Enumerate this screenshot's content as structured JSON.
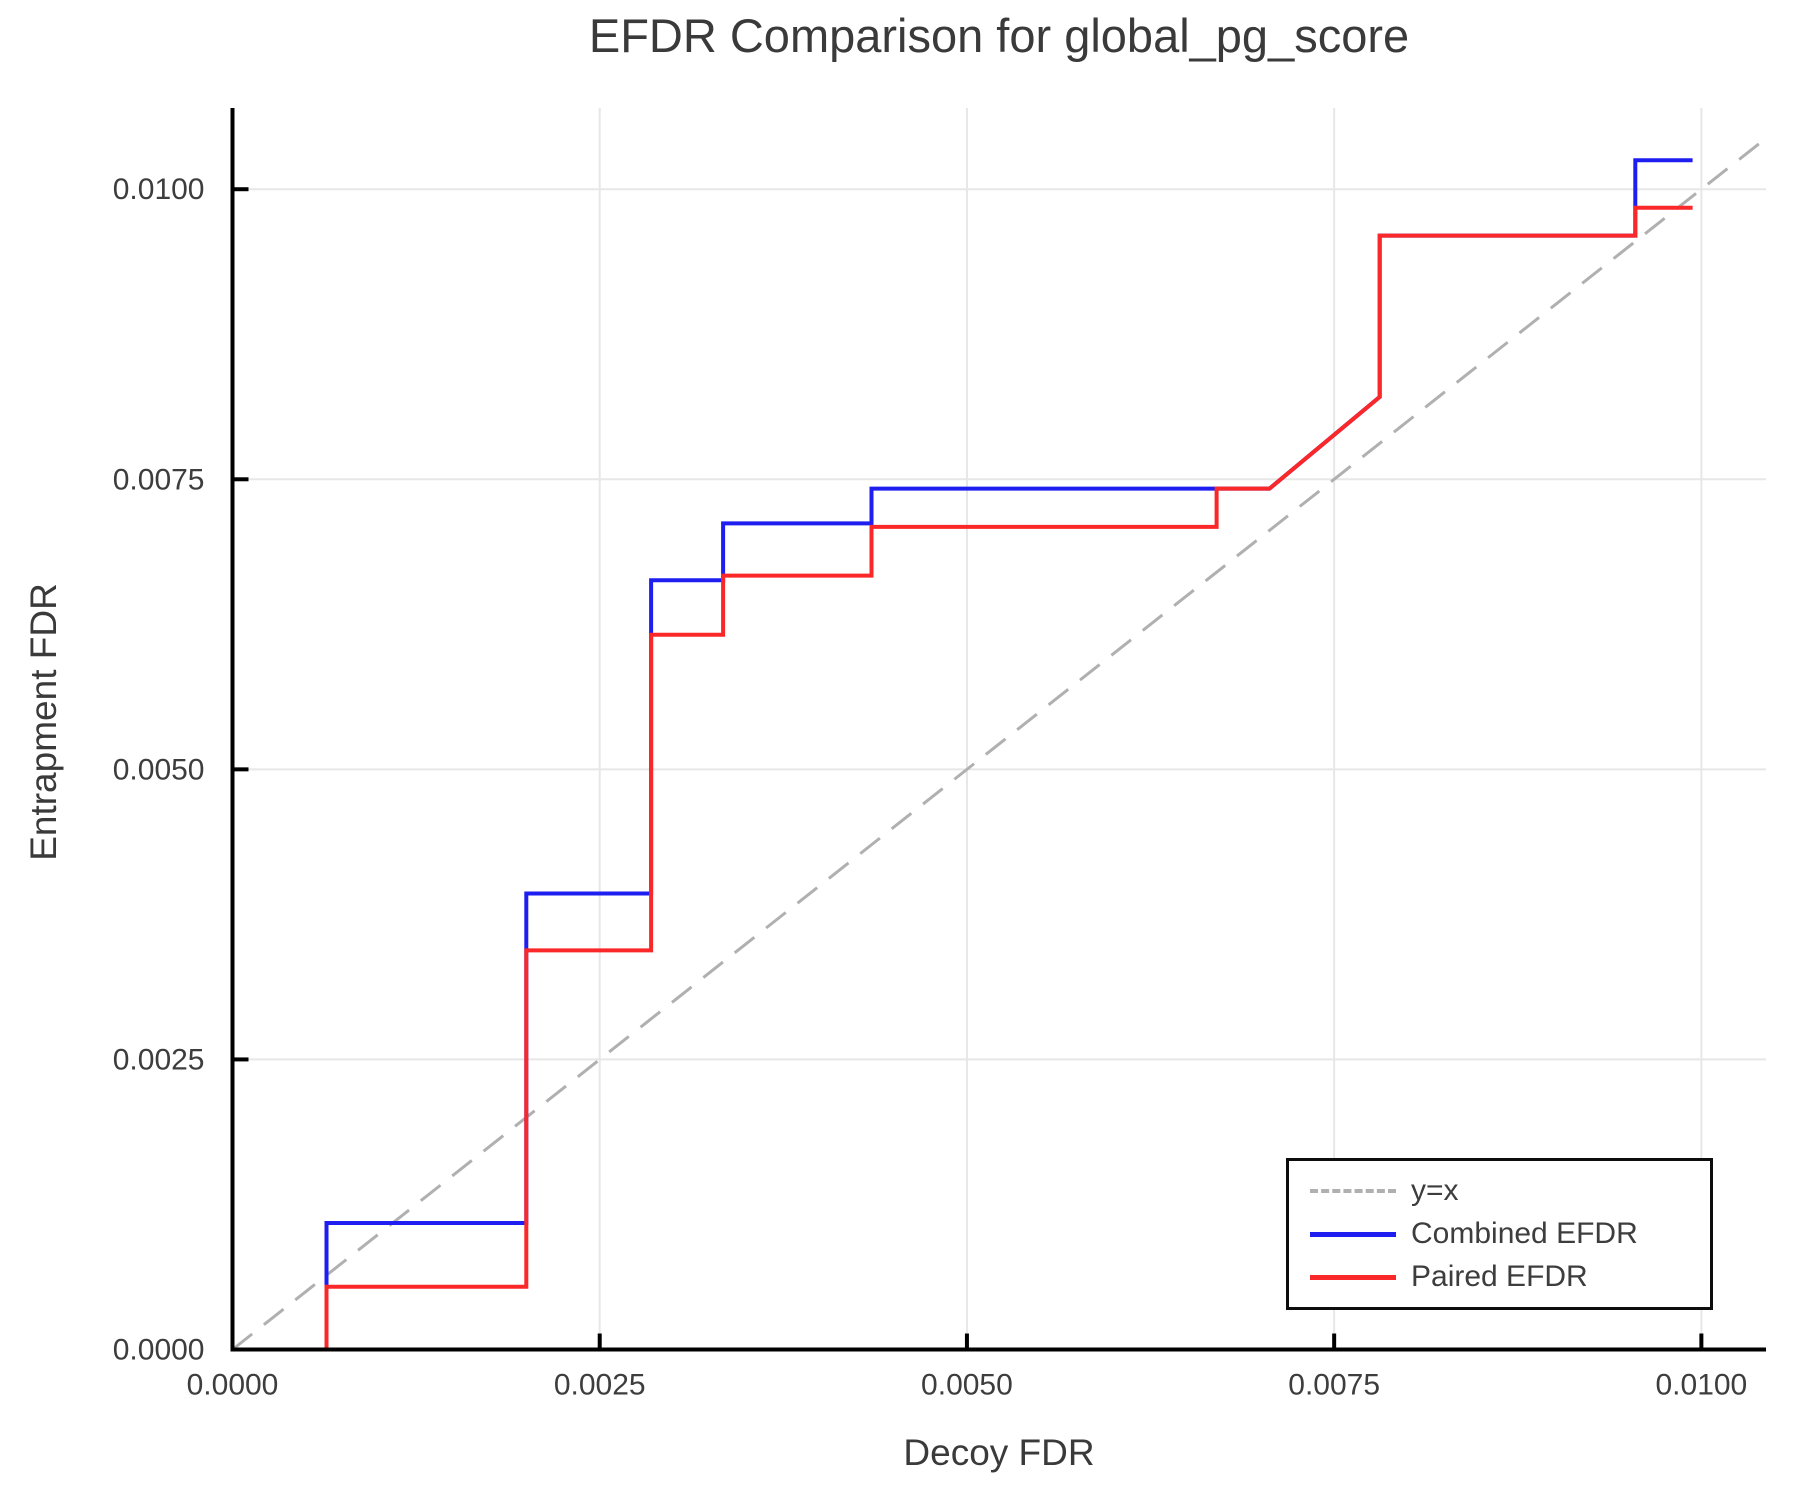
{
  "figure": {
    "title": "EFDR Comparison for global_pg_score"
  },
  "axes": {
    "xlabel": "Decoy FDR",
    "ylabel": "Entrapment FDR"
  },
  "colors": {
    "combined_efdr": "#1e1ef0",
    "paired_efdr": "#fa2828",
    "identity_line": "#b0b0b0",
    "gridline": "#e7e7e7",
    "spine": "#000000",
    "text": "#3d3d3d"
  },
  "legend": {
    "items": [
      {
        "label": "y=x",
        "color": "#b0b0b0",
        "style": "dashed"
      },
      {
        "label": "Combined EFDR",
        "color": "#1e1ef0",
        "style": "solid"
      },
      {
        "label": "Paired EFDR",
        "color": "#fa2828",
        "style": "solid"
      }
    ]
  },
  "chart_data": {
    "type": "line",
    "title": "EFDR Comparison for global_pg_score",
    "xlabel": "Decoy FDR",
    "ylabel": "Entrapment FDR",
    "xlim": [
      0,
      0.01044
    ],
    "ylim": [
      0,
      0.0107
    ],
    "x_tick_labels": [
      "0.0000",
      "0.0025",
      "0.0050",
      "0.0075",
      "0.0100"
    ],
    "y_tick_labels": [
      "0.0000",
      "0.0025",
      "0.0050",
      "0.0075",
      "0.0100"
    ],
    "grid": true,
    "legend_position": "lower right",
    "series": [
      {
        "name": "y=x",
        "color": "#b0b0b0",
        "dash": true,
        "width": 3,
        "points": [
          [
            0,
            0
          ],
          [
            0.01044,
            0.01044
          ]
        ]
      },
      {
        "name": "Combined EFDR",
        "color": "#1e1ef0",
        "dash": false,
        "width": 4,
        "points": [
          [
            0,
            0
          ],
          [
            0.00064,
            0
          ],
          [
            0.00064,
            0.00109
          ],
          [
            0.002,
            0.00109
          ],
          [
            0.002,
            0.00393
          ],
          [
            0.00285,
            0.00393
          ],
          [
            0.00285,
            0.00663
          ],
          [
            0.00334,
            0.00663
          ],
          [
            0.00334,
            0.00712
          ],
          [
            0.00435,
            0.00712
          ],
          [
            0.00435,
            0.00742
          ],
          [
            0.00706,
            0.00742
          ],
          [
            0.00781,
            0.00821
          ],
          [
            0.00781,
            0.0096
          ],
          [
            0.00955,
            0.0096
          ],
          [
            0.00955,
            0.01025
          ],
          [
            0.00994,
            0.01025
          ]
        ]
      },
      {
        "name": "Paired EFDR",
        "color": "#fa2828",
        "dash": false,
        "width": 4,
        "points": [
          [
            0,
            0
          ],
          [
            0.00064,
            0
          ],
          [
            0.00064,
            0.00054
          ],
          [
            0.002,
            0.00054
          ],
          [
            0.002,
            0.00344
          ],
          [
            0.00285,
            0.00344
          ],
          [
            0.00285,
            0.00616
          ],
          [
            0.00334,
            0.00616
          ],
          [
            0.00334,
            0.00667
          ],
          [
            0.00435,
            0.00667
          ],
          [
            0.00435,
            0.00709
          ],
          [
            0.0067,
            0.00709
          ],
          [
            0.0067,
            0.00742
          ],
          [
            0.00706,
            0.00742
          ],
          [
            0.00781,
            0.00821
          ],
          [
            0.00781,
            0.0096
          ],
          [
            0.00955,
            0.0096
          ],
          [
            0.00955,
            0.00984
          ],
          [
            0.00994,
            0.00984
          ]
        ]
      }
    ]
  }
}
